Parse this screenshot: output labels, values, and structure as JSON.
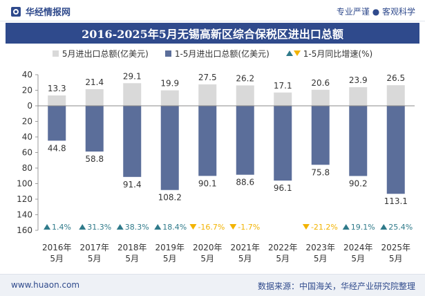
{
  "header": {
    "brand_name": "华经情报网",
    "tagline": "专业严谨 ● 客观科学"
  },
  "footer": {
    "site": "www.huaon.com",
    "source": "数据来源：中国海关，华经产业研究院整理"
  },
  "colors": {
    "monthly_bar": "#d9d9d9",
    "cumulative_bar": "#5b6e9a",
    "growth_up": "#2f7a8a",
    "growth_down": "#f2b300",
    "title_bg": "#2f4a8c"
  },
  "chart_data": {
    "type": "bar",
    "title": "2016-2025年5月无锡高新区综合保税区进出口总额",
    "categories": [
      "2016年5月",
      "2017年5月",
      "2018年5月",
      "2019年5月",
      "2020年5月",
      "2021年5月",
      "2022年5月",
      "2023年5月",
      "2024年5月",
      "2025年5月"
    ],
    "category_lines": [
      [
        "2016年",
        "5月"
      ],
      [
        "2017年",
        "5月"
      ],
      [
        "2018年",
        "5月"
      ],
      [
        "2019年",
        "5月"
      ],
      [
        "2020年",
        "5月"
      ],
      [
        "2021年",
        "5月"
      ],
      [
        "2022年",
        "5月"
      ],
      [
        "2023年",
        "5月"
      ],
      [
        "2024年",
        "5月"
      ],
      [
        "2025年",
        "5月"
      ]
    ],
    "series": [
      {
        "name": "5月进出口总额(亿美元)",
        "direction": "up",
        "values": [
          13.3,
          21.4,
          29.1,
          19.9,
          27.5,
          26.2,
          17.1,
          20.6,
          23.9,
          26.5
        ],
        "labels": [
          "13.3",
          "21.4",
          "29.1",
          "19.9",
          "27.5",
          "26.2",
          "17.1",
          "20.6",
          "23.9",
          "26.5"
        ]
      },
      {
        "name": "1-5月进出口总额(亿美元)",
        "direction": "down",
        "values": [
          44.8,
          58.8,
          91.4,
          108.2,
          90.1,
          88.6,
          96.1,
          75.8,
          90.2,
          113.1
        ],
        "labels": [
          "44.8",
          "58.8",
          "91.4",
          "108.2",
          "90.1",
          "88.6",
          "96.1",
          "75.8",
          "90.2",
          "113.1"
        ]
      },
      {
        "name": "1-5月同比增速(%)",
        "values": [
          1.4,
          31.3,
          38.3,
          18.4,
          -16.7,
          -1.7,
          null,
          -21.2,
          19.1,
          25.4
        ],
        "labels": [
          "1.4%",
          "31.3%",
          "38.3%",
          "18.4%",
          "-16.7%",
          "-1.7%",
          "",
          "-21.2%",
          "19.1%",
          "25.4%"
        ]
      }
    ],
    "yaxis": {
      "range": [
        -160,
        40
      ],
      "ticks": [
        40,
        20,
        0,
        -20,
        -40,
        -60,
        -80,
        -100,
        -120,
        -140,
        -160
      ],
      "tick_labels": [
        "40",
        "20",
        "0",
        "20",
        "40",
        "60",
        "80",
        "100",
        "120",
        "140",
        "160"
      ]
    },
    "grid": false,
    "legend_position": "top"
  }
}
